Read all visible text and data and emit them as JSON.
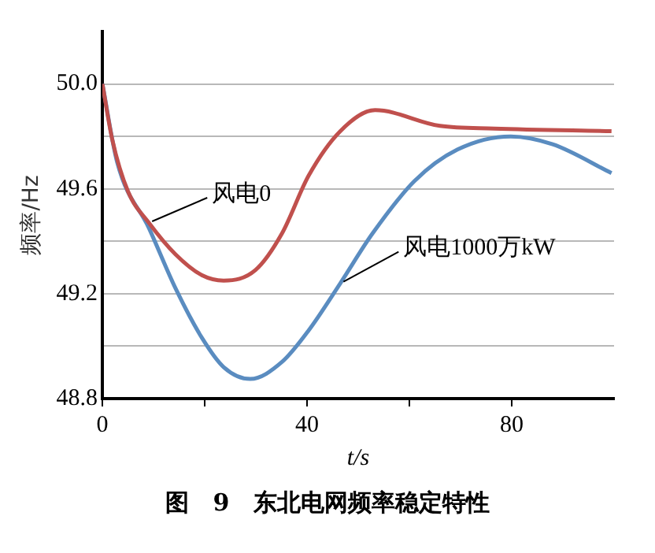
{
  "chart_data": {
    "type": "line",
    "title": "图 9 东北电网频率稳定特性",
    "xlabel": "t/s",
    "ylabel": "频率/Hz",
    "xlim": [
      0,
      100
    ],
    "xticks": [
      0,
      {
        "value": 20,
        "label": null
      },
      40,
      {
        "value": 60,
        "label": null
      },
      80
    ],
    "ylim": [
      48.8,
      50.2
    ],
    "yticks": [
      48.8,
      {
        "value": 49.0,
        "label": null
      },
      49.2,
      {
        "value": 49.4,
        "label": null
      },
      49.6,
      {
        "value": 49.8,
        "label": null
      },
      {
        "value": 50.0,
        "label": "50.0"
      }
    ],
    "grid": "y",
    "legend": false,
    "marker": "none",
    "line_style": "solid",
    "series": [
      {
        "name": "风电0",
        "color": "#c0504d",
        "x": [
          0,
          1.9,
          5,
          9.1,
          14.3,
          19.5,
          23.7,
          29.9,
          35.1,
          40.3,
          46.5,
          53.3,
          66,
          76.6,
          99.5
        ],
        "values": [
          50.0,
          49.79,
          49.59,
          49.47,
          49.35,
          49.27,
          49.25,
          49.29,
          49.43,
          49.65,
          49.82,
          49.9,
          49.84,
          49.83,
          49.82
        ]
      },
      {
        "name": "风电1000万kW",
        "color": "#5a8cc0",
        "x": [
          0,
          2.9,
          9.1,
          14.3,
          19.5,
          23.7,
          28.9,
          35.1,
          40.3,
          46.5,
          52.8,
          61,
          69.4,
          79.8,
          88,
          99.5
        ],
        "values": [
          50.0,
          49.7,
          49.45,
          49.22,
          49.03,
          48.92,
          48.875,
          48.94,
          49.06,
          49.24,
          49.43,
          49.63,
          49.75,
          49.8,
          49.77,
          49.66
        ]
      }
    ]
  }
}
